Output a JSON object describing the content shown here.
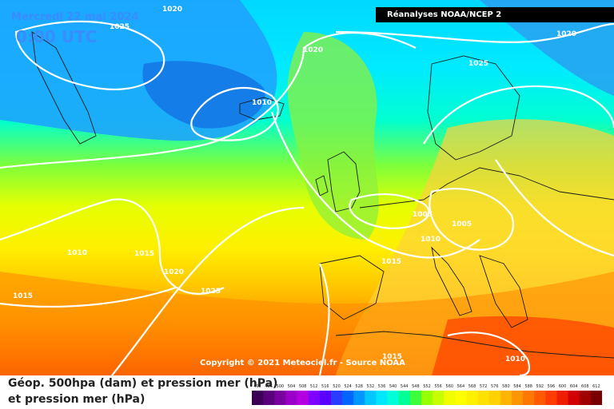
{
  "header": {
    "date_label": "Mercredi 22 mai 2024",
    "time_label": "0:00 UTC",
    "source_badge": "Réanalyses NOAA/NCEP 2"
  },
  "copyright": "Copyright © 2021 Meteociel.fr - Source NOAA",
  "legend": {
    "line1": "Géop. 500hpa (dam) et pression mer (hPa)",
    "line2": "et pression mer (hPa)"
  },
  "isobar_labels": [
    {
      "text": "1020",
      "anchor": "top-left-ocean"
    },
    {
      "text": "1025",
      "anchor": "greenland-west"
    },
    {
      "text": "1020",
      "anchor": "north-atlantic-center"
    },
    {
      "text": "1010",
      "anchor": "iceland-low"
    },
    {
      "text": "1025",
      "anchor": "scandinavia-north"
    },
    {
      "text": "1020",
      "anchor": "arctic-northeast"
    },
    {
      "text": "1010",
      "anchor": "west-atlantic"
    },
    {
      "text": "1015",
      "anchor": "mid-atlantic"
    },
    {
      "text": "1020",
      "anchor": "azores-west"
    },
    {
      "text": "1025",
      "anchor": "azores-high"
    },
    {
      "text": "1015",
      "anchor": "southwest-atlantic"
    },
    {
      "text": "1015",
      "anchor": "bay-of-biscay"
    },
    {
      "text": "1005",
      "anchor": "benelux-low"
    },
    {
      "text": "1010",
      "anchor": "france-north"
    },
    {
      "text": "1005",
      "anchor": "germany-low"
    },
    {
      "text": "1015",
      "anchor": "north-africa"
    },
    {
      "text": "1010",
      "anchor": "eastern-mediterranean"
    }
  ],
  "scale": {
    "values": [
      "492",
      "496",
      "500",
      "504",
      "508",
      "512",
      "516",
      "520",
      "524",
      "528",
      "532",
      "536",
      "540",
      "544",
      "548",
      "552",
      "556",
      "560",
      "564",
      "568",
      "572",
      "576",
      "580",
      "584",
      "588",
      "592",
      "596",
      "600",
      "604",
      "608",
      "612"
    ],
    "colors": [
      "#3b0055",
      "#5a007a",
      "#7a00a0",
      "#9a00c8",
      "#b400e0",
      "#8000ff",
      "#5a00ff",
      "#2a3cff",
      "#0064ff",
      "#0096ff",
      "#00c8ff",
      "#00e6ff",
      "#00ffd8",
      "#00ff96",
      "#3cff3c",
      "#96ff00",
      "#c8ff00",
      "#f0ff00",
      "#ffff00",
      "#fff000",
      "#ffe100",
      "#ffd200",
      "#ffb400",
      "#ff9600",
      "#ff7800",
      "#ff5a00",
      "#ff3c00",
      "#f01e00",
      "#d20000",
      "#a00000",
      "#780000"
    ]
  }
}
